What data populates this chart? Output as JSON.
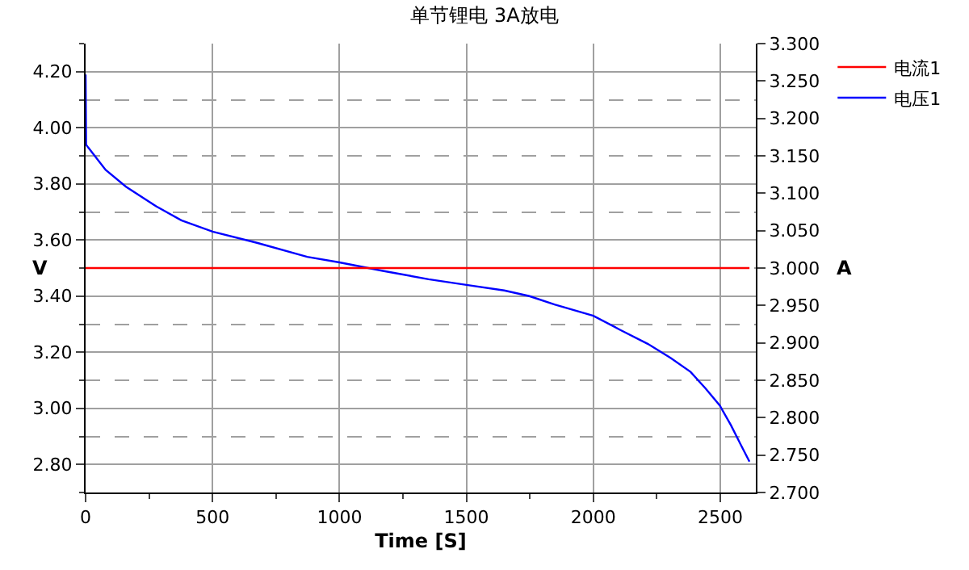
{
  "chart_data": {
    "type": "line",
    "title": "单节锂电 3A放电",
    "xlabel": "Time [S]",
    "ylabel": "V",
    "y2label": "A",
    "xlim": [
      0,
      2640
    ],
    "xticks": [
      0,
      500,
      1000,
      1500,
      2000,
      2500
    ],
    "ylim": [
      2.7,
      4.3
    ],
    "yticks": [
      {
        "value": 2.8,
        "label": "2.80"
      },
      {
        "value": 3.0,
        "label": "3.00"
      },
      {
        "value": 3.2,
        "label": "3.20"
      },
      {
        "value": 3.4,
        "label": "3.40"
      },
      {
        "value": 3.6,
        "label": "3.60"
      },
      {
        "value": 3.8,
        "label": "3.80"
      },
      {
        "value": 4.0,
        "label": "4.00"
      },
      {
        "value": 4.2,
        "label": "4.20"
      }
    ],
    "y2lim": [
      2.7,
      3.3
    ],
    "y2ticks": [
      {
        "value": 2.7,
        "label": "2.700"
      },
      {
        "value": 2.75,
        "label": "2.750"
      },
      {
        "value": 2.8,
        "label": "2.800"
      },
      {
        "value": 2.85,
        "label": "2.850"
      },
      {
        "value": 2.9,
        "label": "2.900"
      },
      {
        "value": 2.95,
        "label": "2.950"
      },
      {
        "value": 3.0,
        "label": "3.000"
      },
      {
        "value": 3.05,
        "label": "3.050"
      },
      {
        "value": 3.1,
        "label": "3.100"
      },
      {
        "value": 3.15,
        "label": "3.150"
      },
      {
        "value": 3.2,
        "label": "3.200"
      },
      {
        "value": 3.25,
        "label": "3.250"
      },
      {
        "value": 3.3,
        "label": "3.300"
      }
    ],
    "grid": true,
    "legend": "top right",
    "marker": "none",
    "line_style": "solid",
    "series": [
      {
        "name": "电流1",
        "color": "#ff0000",
        "axis": "y2",
        "x": [
          0,
          2615
        ],
        "values": [
          3.0,
          3.0
        ]
      },
      {
        "name": "电压1",
        "color": "#0000ff",
        "x": [
          0,
          2,
          10,
          79,
          159,
          278,
          377,
          500,
          675,
          873,
          1000,
          1171,
          1351,
          1500,
          1649,
          1748,
          1847,
          2000,
          2105,
          2214,
          2304,
          2383,
          2443,
          2498,
          2542,
          2581,
          2615
        ],
        "values": [
          4.19,
          3.94,
          3.93,
          3.85,
          3.79,
          3.72,
          3.67,
          3.63,
          3.59,
          3.54,
          3.52,
          3.49,
          3.46,
          3.44,
          3.42,
          3.4,
          3.37,
          3.33,
          3.28,
          3.23,
          3.18,
          3.13,
          3.07,
          3.01,
          2.94,
          2.87,
          2.81
        ]
      }
    ]
  }
}
